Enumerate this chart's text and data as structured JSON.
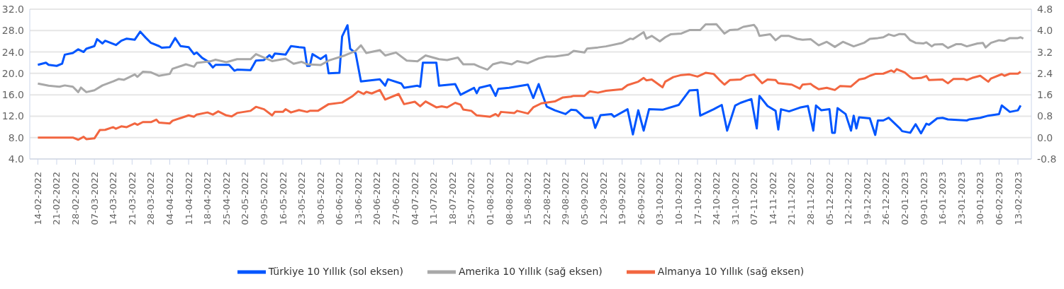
{
  "chart_data": {
    "type": "line",
    "legend": "bottom",
    "grid": "y",
    "marker": "none",
    "line_style": "solid",
    "xlim": [
      "2022-02-11",
      "2023-02-18"
    ],
    "xticks": [
      {
        "value": "2022-02-14",
        "label": "14-02-2022"
      },
      {
        "value": "2022-02-21",
        "label": "21-02-2022"
      },
      {
        "value": "2022-02-28",
        "label": "28-02-2022"
      },
      {
        "value": "2022-03-07",
        "label": "07-03-2022"
      },
      {
        "value": "2022-03-14",
        "label": "14-03-2022"
      },
      {
        "value": "2022-03-21",
        "label": "21-03-2022"
      },
      {
        "value": "2022-03-28",
        "label": "28-03-2022"
      },
      {
        "value": "2022-04-04",
        "label": "04-04-2022"
      },
      {
        "value": "2022-04-11",
        "label": "11-04-2022"
      },
      {
        "value": "2022-04-18",
        "label": "18-04-2022"
      },
      {
        "value": "2022-04-25",
        "label": "25-04-2022"
      },
      {
        "value": "2022-05-02",
        "label": "02-05-2022"
      },
      {
        "value": "2022-05-09",
        "label": "09-05-2022"
      },
      {
        "value": "2022-05-16",
        "label": "16-05-2022"
      },
      {
        "value": "2022-05-23",
        "label": "23-05-2022"
      },
      {
        "value": "2022-05-30",
        "label": "30-05-2022"
      },
      {
        "value": "2022-06-06",
        "label": "06-06-2022"
      },
      {
        "value": "2022-06-13",
        "label": "13-06-2022"
      },
      {
        "value": "2022-06-20",
        "label": "20-06-2022"
      },
      {
        "value": "2022-06-27",
        "label": "27-06-2022"
      },
      {
        "value": "2022-07-04",
        "label": "04-07-2022"
      },
      {
        "value": "2022-07-11",
        "label": "11-07-2022"
      },
      {
        "value": "2022-07-18",
        "label": "18-07-2022"
      },
      {
        "value": "2022-07-25",
        "label": "25-07-2022"
      },
      {
        "value": "2022-08-01",
        "label": "01-08-2022"
      },
      {
        "value": "2022-08-08",
        "label": "08-08-2022"
      },
      {
        "value": "2022-08-15",
        "label": "15-08-2022"
      },
      {
        "value": "2022-08-22",
        "label": "22-08-2022"
      },
      {
        "value": "2022-08-29",
        "label": "29-08-2022"
      },
      {
        "value": "2022-09-05",
        "label": "05-09-2022"
      },
      {
        "value": "2022-09-12",
        "label": "12-09-2022"
      },
      {
        "value": "2022-09-19",
        "label": "19-09-2022"
      },
      {
        "value": "2022-09-26",
        "label": "26-09-2022"
      },
      {
        "value": "2022-10-03",
        "label": "03-10-2022"
      },
      {
        "value": "2022-10-10",
        "label": "10-10-2022"
      },
      {
        "value": "2022-10-17",
        "label": "17-10-2022"
      },
      {
        "value": "2022-10-24",
        "label": "24-10-2022"
      },
      {
        "value": "2022-10-31",
        "label": "31-10-2022"
      },
      {
        "value": "2022-11-07",
        "label": "07-11-2022"
      },
      {
        "value": "2022-11-14",
        "label": "14-11-2022"
      },
      {
        "value": "2022-11-21",
        "label": "21-11-2022"
      },
      {
        "value": "2022-11-28",
        "label": "28-11-2022"
      },
      {
        "value": "2022-12-05",
        "label": "05-12-2022"
      },
      {
        "value": "2022-12-12",
        "label": "12-12-2022"
      },
      {
        "value": "2022-12-19",
        "label": "19-12-2022"
      },
      {
        "value": "2022-12-26",
        "label": "26-12-2022"
      },
      {
        "value": "2023-01-02",
        "label": "02-01-2023"
      },
      {
        "value": "2023-01-09",
        "label": "09-01-2023"
      },
      {
        "value": "2023-01-16",
        "label": "16-01-2023"
      },
      {
        "value": "2023-01-23",
        "label": "23-01-2023"
      },
      {
        "value": "2023-01-30",
        "label": "30-01-2023"
      },
      {
        "value": "2023-02-06",
        "label": "06-02-2023"
      },
      {
        "value": "2023-02-13",
        "label": "13-02-2023"
      }
    ],
    "ylim": [
      4,
      32
    ],
    "yticks": [
      {
        "value": 4,
        "label": "4.0"
      },
      {
        "value": 8,
        "label": "8.0"
      },
      {
        "value": 12,
        "label": "12.0"
      },
      {
        "value": 16,
        "label": "16.0"
      },
      {
        "value": 20,
        "label": "20.0"
      },
      {
        "value": 24,
        "label": "24.0"
      },
      {
        "value": 28,
        "label": "28.0"
      },
      {
        "value": 32,
        "label": "32.0"
      }
    ],
    "y2lim": [
      -0.8,
      4.8
    ],
    "y2ticks": [
      -0.8,
      {
        "value": 0,
        "label": "0.0"
      },
      0.8,
      1.6,
      2.4,
      3.2,
      {
        "value": 4,
        "label": "4.0"
      },
      4.8
    ],
    "series": [
      {
        "name": "Türkiye 10 Yıllık (sol eksen)",
        "color": "#0055ff",
        "x": [
          "2022-02-14",
          "2022-02-17",
          "2022-02-18",
          "2022-02-21",
          "2022-02-23",
          "2022-02-24",
          "2022-02-27",
          "2022-03-01",
          "2022-03-03",
          "2022-03-04",
          "2022-03-07",
          "2022-03-08",
          "2022-03-10",
          "2022-03-11",
          "2022-03-15",
          "2022-03-17",
          "2022-03-19",
          "2022-03-22",
          "2022-03-24",
          "2022-03-26",
          "2022-03-28",
          "2022-03-31",
          "2022-04-01",
          "2022-04-04",
          "2022-04-06",
          "2022-04-08",
          "2022-04-11",
          "2022-04-13",
          "2022-04-14",
          "2022-04-16",
          "2022-04-18",
          "2022-04-20",
          "2022-04-21",
          "2022-04-26",
          "2022-04-28",
          "2022-04-29",
          "2022-05-04",
          "2022-05-06",
          "2022-05-09",
          "2022-05-11",
          "2022-05-12",
          "2022-05-13",
          "2022-05-17",
          "2022-05-19",
          "2022-05-22",
          "2022-05-24",
          "2022-05-25",
          "2022-05-26",
          "2022-05-27",
          "2022-05-30",
          "2022-06-01",
          "2022-06-02",
          "2022-06-06",
          "2022-06-07",
          "2022-06-09",
          "2022-06-10",
          "2022-06-12",
          "2022-06-14",
          "2022-06-21",
          "2022-06-23",
          "2022-06-24",
          "2022-06-29",
          "2022-06-30",
          "2022-07-05",
          "2022-07-06",
          "2022-07-07",
          "2022-07-12",
          "2022-07-13",
          "2022-07-19",
          "2022-07-21",
          "2022-07-26",
          "2022-07-27",
          "2022-07-28",
          "2022-08-01",
          "2022-08-03",
          "2022-08-04",
          "2022-08-08",
          "2022-08-15",
          "2022-08-17",
          "2022-08-19",
          "2022-08-22",
          "2022-08-25",
          "2022-08-29",
          "2022-08-31",
          "2022-09-02",
          "2022-09-05",
          "2022-09-08",
          "2022-09-09",
          "2022-09-11",
          "2022-09-15",
          "2022-09-16",
          "2022-09-21",
          "2022-09-23",
          "2022-09-25",
          "2022-09-27",
          "2022-09-29",
          "2022-10-04",
          "2022-10-10",
          "2022-10-14",
          "2022-10-17",
          "2022-10-18",
          "2022-10-23",
          "2022-10-26",
          "2022-10-28",
          "2022-10-31",
          "2022-11-02",
          "2022-11-06",
          "2022-11-08",
          "2022-11-09",
          "2022-11-12",
          "2022-11-15",
          "2022-11-16",
          "2022-11-17",
          "2022-11-20",
          "2022-11-24",
          "2022-11-27",
          "2022-11-29",
          "2022-11-30",
          "2022-12-02",
          "2022-12-05",
          "2022-12-06",
          "2022-12-07",
          "2022-12-08",
          "2022-12-11",
          "2022-12-13",
          "2022-12-14",
          "2022-12-15",
          "2022-12-16",
          "2022-12-20",
          "2022-12-22",
          "2022-12-23",
          "2022-12-25",
          "2022-12-27",
          "2022-12-31",
          "2023-01-01",
          "2023-01-04",
          "2023-01-06",
          "2023-01-08",
          "2023-01-10",
          "2023-01-11",
          "2023-01-14",
          "2023-01-16",
          "2023-01-18",
          "2023-01-25",
          "2023-01-26",
          "2023-01-30",
          "2023-02-02",
          "2023-02-06",
          "2023-02-07",
          "2023-02-10",
          "2023-02-13",
          "2023-02-14"
        ],
        "values": [
          21.6,
          22.0,
          21.6,
          21.4,
          21.8,
          23.5,
          23.8,
          24.5,
          24.0,
          24.6,
          25.1,
          26.4,
          25.6,
          26.1,
          25.3,
          26.1,
          26.5,
          26.3,
          27.8,
          26.7,
          25.7,
          25.1,
          24.8,
          24.9,
          26.6,
          25.1,
          24.9,
          23.6,
          23.9,
          22.9,
          22.3,
          21.1,
          21.6,
          21.6,
          20.5,
          20.7,
          20.6,
          22.4,
          22.5,
          23.4,
          22.9,
          23.7,
          23.5,
          25.1,
          24.9,
          24.8,
          21.4,
          21.4,
          23.6,
          22.7,
          23.4,
          20.0,
          20.1,
          26.9,
          29.0,
          24.6,
          23.8,
          18.5,
          18.9,
          17.7,
          18.9,
          18.1,
          17.3,
          17.7,
          17.5,
          22.0,
          22.0,
          17.7,
          18.0,
          16.0,
          17.3,
          16.3,
          17.3,
          17.8,
          15.8,
          17.1,
          17.3,
          17.9,
          15.4,
          18.0,
          13.8,
          13.1,
          12.4,
          13.2,
          13.1,
          11.7,
          11.7,
          9.8,
          12.2,
          12.4,
          11.9,
          13.3,
          8.6,
          13.1,
          9.3,
          13.3,
          13.2,
          14.1,
          16.8,
          16.9,
          12.1,
          13.3,
          14.1,
          9.3,
          14.0,
          14.5,
          15.2,
          9.7,
          15.8,
          13.9,
          13.0,
          9.5,
          13.3,
          12.9,
          13.6,
          13.9,
          9.3,
          14.0,
          13.1,
          13.3,
          8.9,
          8.9,
          13.5,
          12.4,
          9.3,
          12.1,
          9.7,
          11.8,
          11.6,
          8.5,
          11.2,
          11.2,
          11.7,
          9.8,
          9.2,
          8.9,
          10.5,
          8.8,
          10.6,
          10.4,
          11.6,
          11.7,
          11.4,
          11.2,
          11.4,
          11.7,
          12.1,
          12.4,
          14.0,
          12.8,
          13.1,
          14.0
        ]
      },
      {
        "name": "Amerika 10 Yıllık (sağ eksen)",
        "color": "#a8a8a8",
        "axis": "y2",
        "x": [
          "2022-02-14",
          "2022-02-18",
          "2022-02-22",
          "2022-02-24",
          "2022-02-27",
          "2022-03-01",
          "2022-03-02",
          "2022-03-04",
          "2022-03-07",
          "2022-03-10",
          "2022-03-14",
          "2022-03-16",
          "2022-03-18",
          "2022-03-22",
          "2022-03-23",
          "2022-03-25",
          "2022-03-28",
          "2022-03-31",
          "2022-04-04",
          "2022-04-05",
          "2022-04-10",
          "2022-04-13",
          "2022-04-14",
          "2022-04-19",
          "2022-04-21",
          "2022-04-25",
          "2022-04-29",
          "2022-05-04",
          "2022-05-06",
          "2022-05-12",
          "2022-05-17",
          "2022-05-20",
          "2022-05-23",
          "2022-05-25",
          "2022-05-30",
          "2022-06-02",
          "2022-06-08",
          "2022-06-12",
          "2022-06-14",
          "2022-06-16",
          "2022-06-21",
          "2022-06-23",
          "2022-06-27",
          "2022-07-01",
          "2022-07-05",
          "2022-07-08",
          "2022-07-13",
          "2022-07-16",
          "2022-07-20",
          "2022-07-22",
          "2022-07-26",
          "2022-07-28",
          "2022-07-31",
          "2022-08-02",
          "2022-08-05",
          "2022-08-09",
          "2022-08-11",
          "2022-08-15",
          "2022-08-19",
          "2022-08-22",
          "2022-08-25",
          "2022-08-30",
          "2022-09-01",
          "2022-09-05",
          "2022-09-06",
          "2022-09-10",
          "2022-09-13",
          "2022-09-19",
          "2022-09-22",
          "2022-09-23",
          "2022-09-27",
          "2022-09-28",
          "2022-09-30",
          "2022-10-03",
          "2022-10-05",
          "2022-10-07",
          "2022-10-11",
          "2022-10-14",
          "2022-10-18",
          "2022-10-20",
          "2022-10-24",
          "2022-10-27",
          "2022-10-29",
          "2022-11-01",
          "2022-11-03",
          "2022-11-07",
          "2022-11-08",
          "2022-11-09",
          "2022-11-13",
          "2022-11-15",
          "2022-11-17",
          "2022-11-20",
          "2022-11-23",
          "2022-11-25",
          "2022-11-28",
          "2022-12-01",
          "2022-12-04",
          "2022-12-07",
          "2022-12-10",
          "2022-12-14",
          "2022-12-18",
          "2022-12-20",
          "2022-12-23",
          "2022-12-25",
          "2022-12-27",
          "2022-12-29",
          "2022-12-31",
          "2023-01-02",
          "2023-01-04",
          "2023-01-06",
          "2023-01-09",
          "2023-01-10",
          "2023-01-12",
          "2023-01-13",
          "2023-01-16",
          "2023-01-18",
          "2023-01-21",
          "2023-01-23",
          "2023-01-25",
          "2023-01-29",
          "2023-01-31",
          "2023-02-01",
          "2023-02-03",
          "2023-02-06",
          "2023-02-08",
          "2023-02-10",
          "2023-02-13",
          "2023-02-14",
          "2023-02-15"
        ],
        "values": [
          2.02,
          1.94,
          1.9,
          1.95,
          1.9,
          1.7,
          1.87,
          1.7,
          1.77,
          1.95,
          2.1,
          2.19,
          2.16,
          2.36,
          2.27,
          2.46,
          2.44,
          2.31,
          2.38,
          2.57,
          2.74,
          2.65,
          2.79,
          2.85,
          2.91,
          2.82,
          2.93,
          2.93,
          3.12,
          2.86,
          2.95,
          2.76,
          2.83,
          2.74,
          2.71,
          2.88,
          3.07,
          3.24,
          3.45,
          3.16,
          3.27,
          3.07,
          3.18,
          2.88,
          2.85,
          3.07,
          2.93,
          2.9,
          2.99,
          2.74,
          2.74,
          2.65,
          2.54,
          2.74,
          2.82,
          2.74,
          2.86,
          2.78,
          2.96,
          3.03,
          3.03,
          3.1,
          3.24,
          3.18,
          3.33,
          3.37,
          3.41,
          3.54,
          3.7,
          3.68,
          3.94,
          3.7,
          3.8,
          3.6,
          3.75,
          3.86,
          3.89,
          4.02,
          4.02,
          4.23,
          4.24,
          3.89,
          4.02,
          4.04,
          4.14,
          4.21,
          4.08,
          3.8,
          3.86,
          3.64,
          3.8,
          3.8,
          3.69,
          3.66,
          3.68,
          3.45,
          3.58,
          3.39,
          3.58,
          3.41,
          3.55,
          3.69,
          3.72,
          3.75,
          3.86,
          3.8,
          3.87,
          3.86,
          3.64,
          3.54,
          3.52,
          3.56,
          3.41,
          3.48,
          3.49,
          3.35,
          3.49,
          3.49,
          3.41,
          3.52,
          3.54,
          3.37,
          3.54,
          3.64,
          3.62,
          3.72,
          3.72,
          3.75,
          3.7
        ]
      },
      {
        "name": "Almanya 10 Yıllık (sağ eksen)",
        "color": "#f26640",
        "axis": "y2",
        "x": [
          "2022-02-14",
          "2022-02-27",
          "2022-03-01",
          "2022-03-03",
          "2022-03-04",
          "2022-03-07",
          "2022-03-09",
          "2022-03-11",
          "2022-03-14",
          "2022-03-15",
          "2022-03-17",
          "2022-03-19",
          "2022-03-22",
          "2022-03-23",
          "2022-03-25",
          "2022-03-28",
          "2022-03-30",
          "2022-03-31",
          "2022-04-04",
          "2022-04-05",
          "2022-04-11",
          "2022-04-13",
          "2022-04-14",
          "2022-04-18",
          "2022-04-20",
          "2022-04-22",
          "2022-04-25",
          "2022-04-27",
          "2022-04-29",
          "2022-05-04",
          "2022-05-06",
          "2022-05-09",
          "2022-05-12",
          "2022-05-13",
          "2022-05-16",
          "2022-05-17",
          "2022-05-19",
          "2022-05-22",
          "2022-05-25",
          "2022-05-26",
          "2022-05-29",
          "2022-06-02",
          "2022-06-07",
          "2022-06-11",
          "2022-06-13",
          "2022-06-15",
          "2022-06-16",
          "2022-06-18",
          "2022-06-21",
          "2022-06-23",
          "2022-06-28",
          "2022-06-30",
          "2022-07-04",
          "2022-07-06",
          "2022-07-08",
          "2022-07-12",
          "2022-07-14",
          "2022-07-16",
          "2022-07-19",
          "2022-07-21",
          "2022-07-22",
          "2022-07-25",
          "2022-07-27",
          "2022-08-01",
          "2022-08-03",
          "2022-08-04",
          "2022-08-05",
          "2022-08-10",
          "2022-08-11",
          "2022-08-15",
          "2022-08-17",
          "2022-08-20",
          "2022-08-25",
          "2022-08-28",
          "2022-08-31",
          "2022-09-01",
          "2022-09-05",
          "2022-09-06",
          "2022-09-07",
          "2022-09-10",
          "2022-09-13",
          "2022-09-19",
          "2022-09-21",
          "2022-09-25",
          "2022-09-27",
          "2022-09-28",
          "2022-09-30",
          "2022-10-04",
          "2022-10-05",
          "2022-10-08",
          "2022-10-11",
          "2022-10-14",
          "2022-10-17",
          "2022-10-20",
          "2022-10-23",
          "2022-10-25",
          "2022-10-27",
          "2022-10-29",
          "2022-11-02",
          "2022-11-04",
          "2022-11-07",
          "2022-11-10",
          "2022-11-12",
          "2022-11-15",
          "2022-11-16",
          "2022-11-21",
          "2022-11-24",
          "2022-11-25",
          "2022-11-28",
          "2022-11-29",
          "2022-12-01",
          "2022-12-04",
          "2022-12-07",
          "2022-12-09",
          "2022-12-13",
          "2022-12-16",
          "2022-12-18",
          "2022-12-20",
          "2022-12-22",
          "2022-12-25",
          "2022-12-28",
          "2022-12-29",
          "2022-12-30",
          "2023-01-02",
          "2023-01-04",
          "2023-01-05",
          "2023-01-08",
          "2023-01-10",
          "2023-01-11",
          "2023-01-16",
          "2023-01-18",
          "2023-01-20",
          "2023-01-24",
          "2023-01-25",
          "2023-01-27",
          "2023-01-30",
          "2023-02-02",
          "2023-02-03",
          "2023-02-07",
          "2023-02-08",
          "2023-02-10",
          "2023-02-13",
          "2023-02-14"
        ],
        "values": [
          0.0,
          0.0,
          -0.08,
          0.03,
          -0.06,
          -0.03,
          0.28,
          0.29,
          0.39,
          0.33,
          0.42,
          0.39,
          0.53,
          0.48,
          0.58,
          0.58,
          0.67,
          0.56,
          0.53,
          0.63,
          0.83,
          0.78,
          0.86,
          0.94,
          0.86,
          0.98,
          0.83,
          0.79,
          0.92,
          1.0,
          1.15,
          1.06,
          0.83,
          0.96,
          0.96,
          1.06,
          0.94,
          1.03,
          0.96,
          1.0,
          1.0,
          1.25,
          1.31,
          1.56,
          1.73,
          1.63,
          1.71,
          1.65,
          1.78,
          1.42,
          1.63,
          1.25,
          1.34,
          1.17,
          1.35,
          1.13,
          1.17,
          1.13,
          1.3,
          1.23,
          1.05,
          1.0,
          0.83,
          0.78,
          0.88,
          0.8,
          0.96,
          0.92,
          1.0,
          0.9,
          1.13,
          1.28,
          1.35,
          1.5,
          1.53,
          1.56,
          1.56,
          1.65,
          1.73,
          1.68,
          1.75,
          1.81,
          1.96,
          2.09,
          2.23,
          2.14,
          2.17,
          1.88,
          2.09,
          2.26,
          2.34,
          2.36,
          2.28,
          2.42,
          2.38,
          2.17,
          1.98,
          2.15,
          2.17,
          2.3,
          2.36,
          2.03,
          2.17,
          2.15,
          2.03,
          1.98,
          1.83,
          1.98,
          2.01,
          1.93,
          1.81,
          1.86,
          1.78,
          1.93,
          1.91,
          2.17,
          2.21,
          2.31,
          2.38,
          2.39,
          2.51,
          2.45,
          2.56,
          2.43,
          2.26,
          2.21,
          2.23,
          2.3,
          2.15,
          2.17,
          2.03,
          2.19,
          2.19,
          2.15,
          2.23,
          2.31,
          2.09,
          2.21,
          2.37,
          2.31,
          2.39,
          2.39,
          2.46
        ]
      }
    ]
  }
}
